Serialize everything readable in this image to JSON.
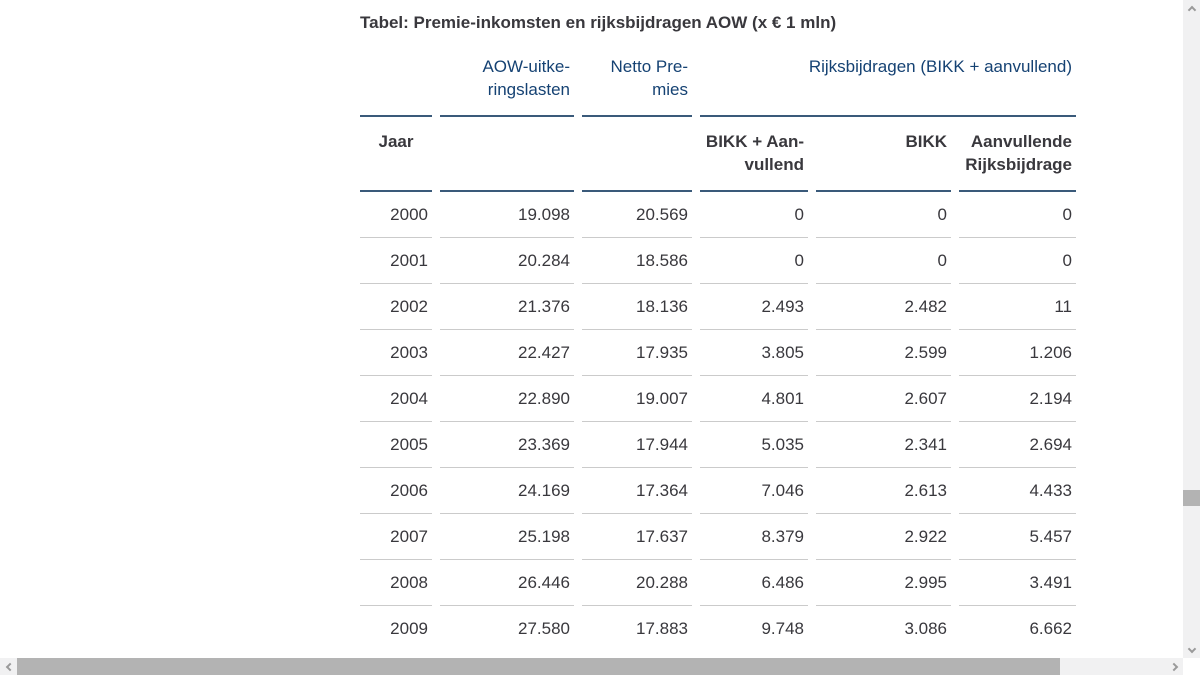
{
  "title": "Tabel: Premie-inkomsten en rijksbijdragen AOW (x € 1 mln)",
  "colors": {
    "header_blue": "#154273",
    "header_rule": "#3a5a7a",
    "row_rule": "#cbcbcb",
    "text": "#39383d",
    "scroll_track": "#f1f1f2",
    "scroll_thumb": "#b3b3b3"
  },
  "table": {
    "header_row1": {
      "aow_lasten": "AOW-uitke-\nringslasten",
      "netto_premies": "Netto Pre-\nmies",
      "rijksbijdragen_group": "Rijksbijdragen (BIKK + aanvullend)"
    },
    "header_row2": {
      "jaar": "Jaar",
      "bikk_aanvullend": "BIKK + Aan-\nvullend",
      "bikk": "BIKK",
      "aanvullende_rijksbijdrage": "Aanvullende\nRijksbijdrage"
    },
    "rows": [
      [
        "2000",
        "19.098",
        "20.569",
        "0",
        "0",
        "0"
      ],
      [
        "2001",
        "20.284",
        "18.586",
        "0",
        "0",
        "0"
      ],
      [
        "2002",
        "21.376",
        "18.136",
        "2.493",
        "2.482",
        "11"
      ],
      [
        "2003",
        "22.427",
        "17.935",
        "3.805",
        "2.599",
        "1.206"
      ],
      [
        "2004",
        "22.890",
        "19.007",
        "4.801",
        "2.607",
        "2.194"
      ],
      [
        "2005",
        "23.369",
        "17.944",
        "5.035",
        "2.341",
        "2.694"
      ],
      [
        "2006",
        "24.169",
        "17.364",
        "7.046",
        "2.613",
        "4.433"
      ],
      [
        "2007",
        "25.198",
        "17.637",
        "8.379",
        "2.922",
        "5.457"
      ],
      [
        "2008",
        "26.446",
        "20.288",
        "6.486",
        "2.995",
        "3.491"
      ],
      [
        "2009",
        "27.580",
        "17.883",
        "9.748",
        "3.086",
        "6.662"
      ]
    ]
  },
  "scrollbars": {
    "horizontal": {
      "left_icon": "scroll-left-icon",
      "right_icon": "scroll-right-icon"
    },
    "vertical": {
      "up_icon": "scroll-up-icon",
      "down_icon": "scroll-down-icon"
    }
  }
}
